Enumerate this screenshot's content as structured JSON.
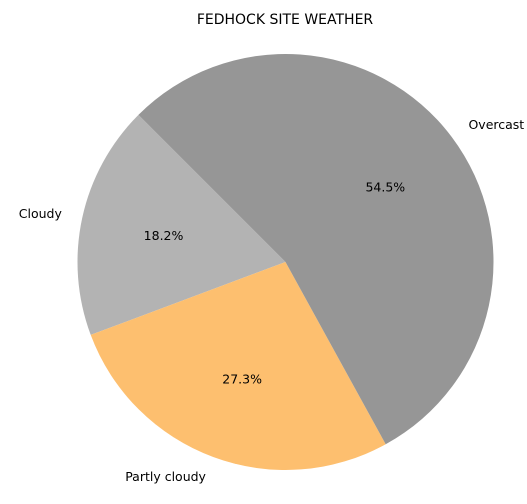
{
  "chart_data": {
    "type": "pie",
    "title": "FEDHOCK SITE WEATHER",
    "slices": [
      {
        "label": "Cloudy",
        "value": 18.2,
        "pct_label": "18.2%",
        "color": "#b3b3b3"
      },
      {
        "label": "Partly cloudy",
        "value": 27.3,
        "pct_label": "27.3%",
        "color": "#fdbf6f"
      },
      {
        "label": "Overcast",
        "value": 54.5,
        "pct_label": "54.5%",
        "color": "#969696"
      }
    ],
    "start_angle_deg": 135,
    "direction": "counterclockwise",
    "legend": "none"
  }
}
